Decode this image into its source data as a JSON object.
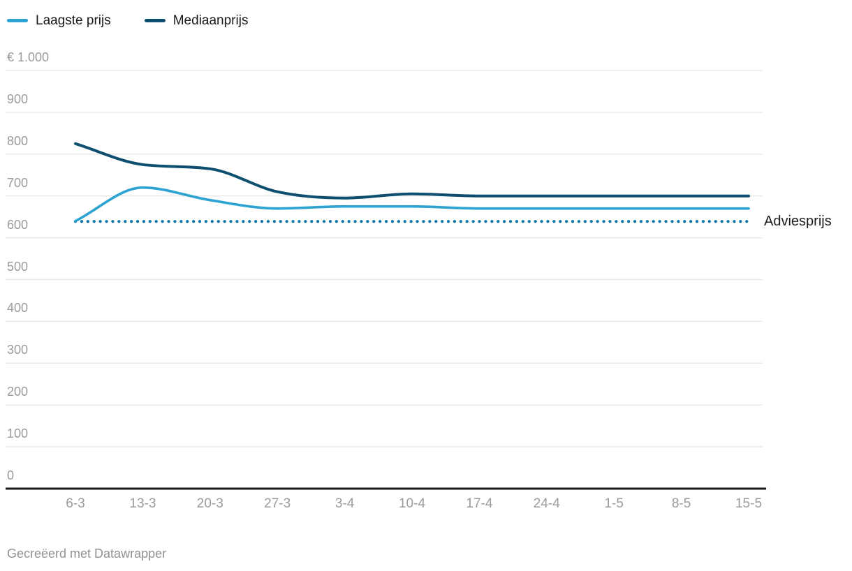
{
  "legend": {
    "items": [
      {
        "label": "Laagste prijs",
        "color": "#2da3d2"
      },
      {
        "label": "Mediaanprijs",
        "color": "#0e4f70"
      }
    ]
  },
  "chart_data": {
    "type": "line",
    "categories": [
      "6-3",
      "13-3",
      "20-3",
      "27-3",
      "3-4",
      "10-4",
      "17-4",
      "24-4",
      "1-5",
      "8-5",
      "15-5"
    ],
    "series": [
      {
        "name": "Laagste prijs",
        "color": "#2da3d2",
        "style": "solid",
        "values": [
          640,
          720,
          690,
          670,
          675,
          675,
          670,
          670,
          670,
          670,
          670
        ]
      },
      {
        "name": "Mediaanprijs",
        "color": "#0e4f70",
        "style": "solid",
        "values": [
          825,
          775,
          765,
          710,
          695,
          705,
          700,
          700,
          700,
          700,
          700
        ]
      }
    ],
    "reference_line": {
      "label": "Adviesprijs",
      "value": 639,
      "color": "#0d74a9",
      "style": "dotted"
    },
    "y_axis": {
      "min": 0,
      "max": 1000,
      "tick_interval": 100,
      "currency_prefix": "€",
      "tick_labels_top_to_bottom": [
        "€ 1.000",
        "900",
        "800",
        "700",
        "600",
        "500",
        "400",
        "300",
        "200",
        "100",
        "0"
      ]
    },
    "x_axis": {
      "tick_labels": [
        "6-3",
        "13-3",
        "20-3",
        "27-3",
        "3-4",
        "10-4",
        "17-4",
        "24-4",
        "1-5",
        "8-5",
        "15-5"
      ]
    },
    "grid": true,
    "legend_position": "top-left"
  },
  "footer": {
    "credit": "Gecreëerd met Datawrapper"
  },
  "colors": {
    "background": "#ffffff",
    "gridline": "#e8e8e8",
    "axis_line": "#1a1a1a",
    "tick_text": "#9b9b9b",
    "annotation_text": "#1d1d1d",
    "footer_text": "#919191"
  }
}
